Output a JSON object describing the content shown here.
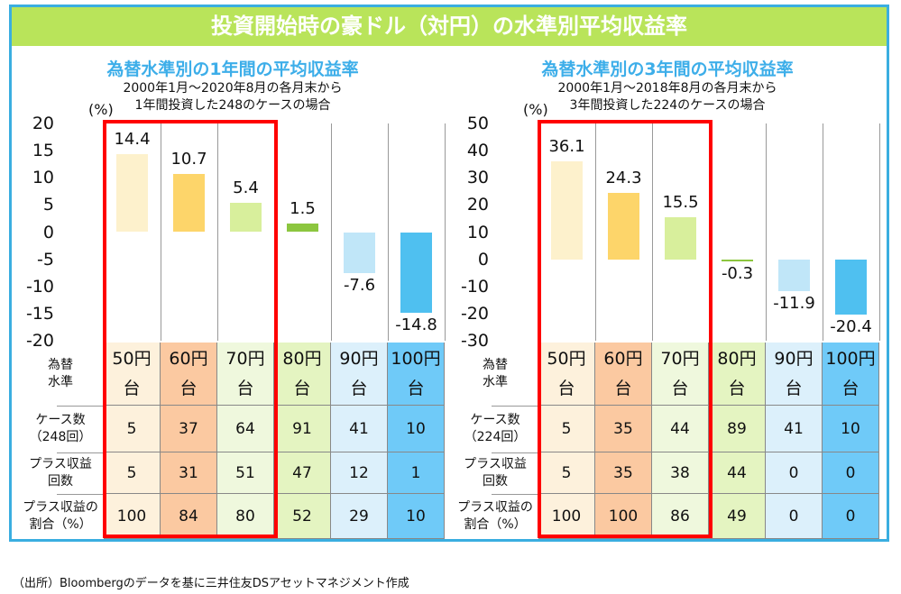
{
  "title": "投資開始時の豪ドル（対円）の水準別平均収益率",
  "source": "（出所）Bloombergのデータを基に三井住友DSアセットマネジメント作成",
  "chart_data": [
    {
      "type": "bar",
      "title": "為替水準別の1年間の平均収益率",
      "subtitle": [
        "2000年1月～2020年8月の各月末から",
        "1年間投資した248のケースの場合"
      ],
      "ylabel": "(%)",
      "ylim": [
        -20,
        20
      ],
      "yticks": [
        20,
        15,
        10,
        5,
        0,
        -5,
        -10,
        -15,
        -20
      ],
      "categories": [
        "50円台",
        "60円台",
        "70円台",
        "80円台",
        "90円台",
        "100円台"
      ],
      "values": [
        14.4,
        10.7,
        5.4,
        1.5,
        -7.6,
        -14.8
      ],
      "highlight": [
        "50円台",
        "60円台",
        "70円台"
      ],
      "table": {
        "row_labels": [
          "為替水準",
          "ケース数（248回）",
          "プラス収益回数",
          "プラス収益の割合（%）"
        ],
        "rows": [
          [
            "5",
            "37",
            "64",
            "91",
            "41",
            "10"
          ],
          [
            "5",
            "31",
            "51",
            "47",
            "12",
            "1"
          ],
          [
            "100",
            "84",
            "80",
            "52",
            "29",
            "10"
          ]
        ]
      }
    },
    {
      "type": "bar",
      "title": "為替水準別の3年間の平均収益率",
      "subtitle": [
        "2000年1月～2018年8月の各月末から",
        "3年間投資した224のケースの場合"
      ],
      "ylabel": "(%)",
      "ylim": [
        -30,
        50
      ],
      "yticks": [
        50,
        40,
        30,
        20,
        10,
        0,
        -10,
        -20,
        -30
      ],
      "categories": [
        "50円台",
        "60円台",
        "70円台",
        "80円台",
        "90円台",
        "100円台"
      ],
      "values": [
        36.1,
        24.3,
        15.5,
        -0.3,
        -11.9,
        -20.4
      ],
      "highlight": [
        "50円台",
        "60円台",
        "70円台"
      ],
      "table": {
        "row_labels": [
          "為替水準",
          "ケース数（224回）",
          "プラス収益回数",
          "プラス収益の割合（%）"
        ],
        "rows": [
          [
            "5",
            "35",
            "44",
            "89",
            "41",
            "10"
          ],
          [
            "5",
            "35",
            "38",
            "44",
            "0",
            "0"
          ],
          [
            "100",
            "100",
            "86",
            "49",
            "0",
            "0"
          ]
        ]
      }
    }
  ],
  "colors": {
    "bars": [
      "#fdf1cc",
      "#fdd56a",
      "#d8ef9c",
      "#8cc63f",
      "#c0e6f8",
      "#4fc0f0"
    ],
    "columns": [
      "#fdf1dc",
      "#fbc9a1",
      "#eff8dd",
      "#e4f4c1",
      "#dcf0fb",
      "#6fcaf8"
    ],
    "title_bg": "#b9e45a",
    "frame": "#3aaee0",
    "subtitle": "#3daee9",
    "highlight": "#ff0000"
  }
}
